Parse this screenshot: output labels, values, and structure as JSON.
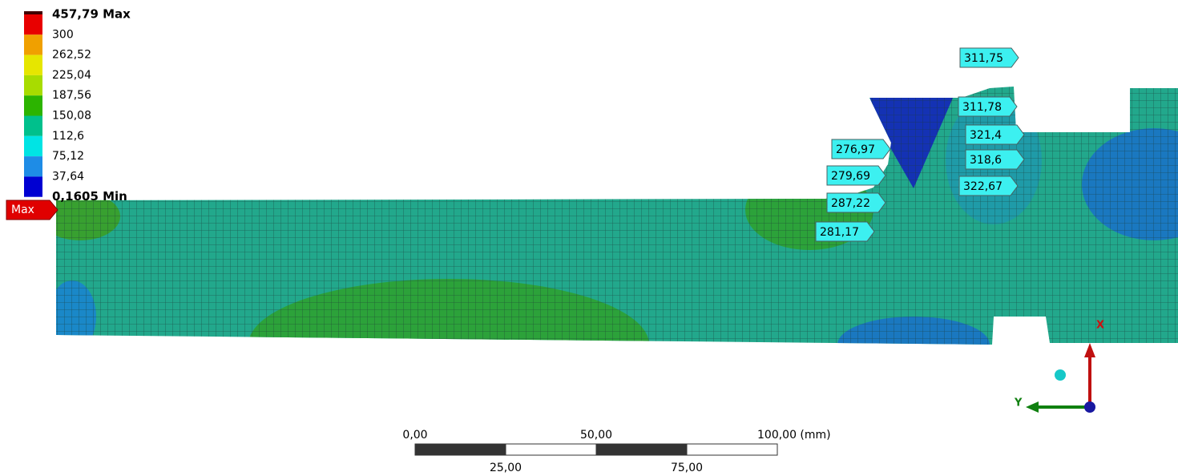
{
  "legend": {
    "labels": [
      "457,79 Max",
      "300",
      "262,52",
      "225,04",
      "187,56",
      "150,08",
      "112,6",
      "75,12",
      "37,64",
      "0,1605 Min"
    ],
    "colors": [
      "#e80000",
      "#f0a000",
      "#e6e600",
      "#a8dc00",
      "#2cb400",
      "#00c08c",
      "#00e4e4",
      "#1e8ce6",
      "#0000d2"
    ]
  },
  "max_tag": "Max",
  "probes": [
    "311,75",
    "311,78",
    "321,4",
    "318,6",
    "322,67",
    "276,97",
    "279,69",
    "287,22",
    "281,17"
  ],
  "scale_bar": {
    "labels": [
      "0,00",
      "50,00",
      "100,00 (mm)",
      "25,00",
      "75,00"
    ]
  },
  "triad": {
    "x": "X",
    "y": "Y"
  }
}
